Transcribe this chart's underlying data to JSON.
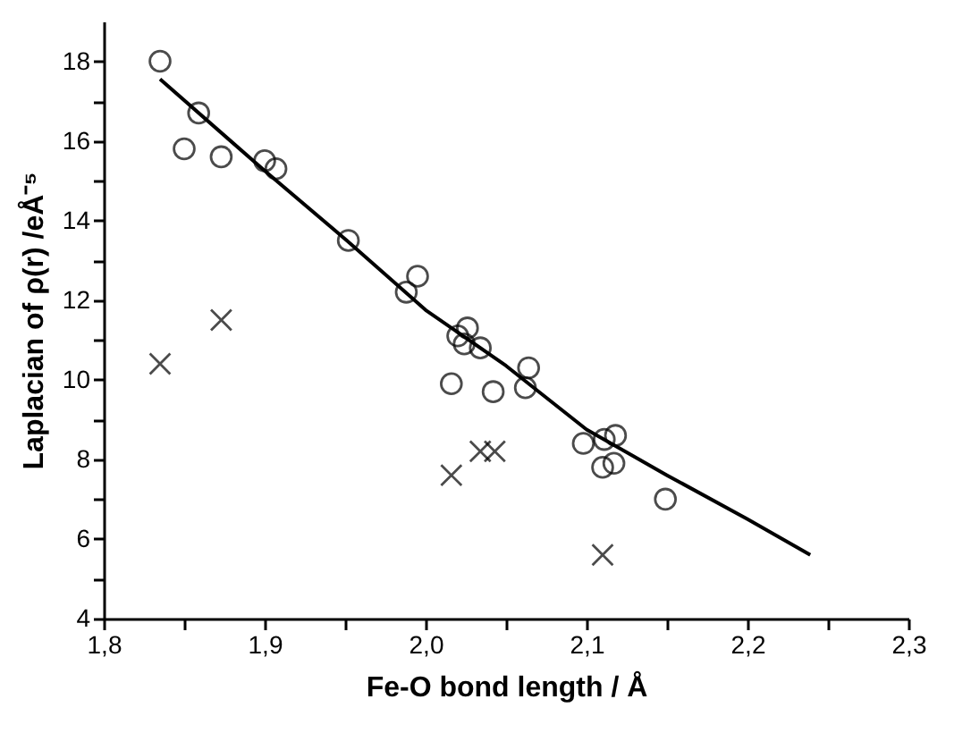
{
  "chart_data": {
    "type": "scatter",
    "xlabel": "Fe-O bond length / Å",
    "ylabel": "Laplacian of ρ(r) /eÅ⁻⁵",
    "xlim": [
      1.8,
      2.3
    ],
    "ylim": [
      4,
      19
    ],
    "xticks": [
      {
        "value": 1.8,
        "label": "1,8"
      },
      {
        "value": 1.85,
        "label": null
      },
      {
        "value": 1.9,
        "label": "1,9"
      },
      {
        "value": 1.95,
        "label": null
      },
      {
        "value": 2.0,
        "label": "2,0"
      },
      {
        "value": 2.05,
        "label": null
      },
      {
        "value": 2.1,
        "label": "2,1"
      },
      {
        "value": 2.15,
        "label": null
      },
      {
        "value": 2.2,
        "label": "2,2"
      },
      {
        "value": 2.25,
        "label": null
      },
      {
        "value": 2.3,
        "label": "2,3"
      }
    ],
    "yticks": [
      4,
      {
        "value": 5,
        "label": null
      },
      6,
      {
        "value": 7,
        "label": null
      },
      8,
      {
        "value": 9,
        "label": null
      },
      10,
      {
        "value": 11,
        "label": null
      },
      12,
      {
        "value": 13,
        "label": null
      },
      14,
      {
        "value": 15,
        "label": null
      },
      16,
      {
        "value": 17,
        "label": null
      },
      18
    ],
    "series": [
      {
        "marker": "circle",
        "color": "#000000",
        "x": [
          1.835,
          1.859,
          1.85,
          1.873,
          1.9,
          1.907,
          1.952,
          1.988,
          1.995,
          2.02,
          2.026,
          2.024,
          2.034,
          2.016,
          2.042,
          2.064,
          2.062,
          2.098,
          2.111,
          2.118,
          2.11,
          2.117,
          2.149
        ],
        "values": [
          18.0,
          16.7,
          15.8,
          15.6,
          15.5,
          15.3,
          13.5,
          12.2,
          12.6,
          11.1,
          11.3,
          10.9,
          10.8,
          9.9,
          9.7,
          10.3,
          9.8,
          8.4,
          8.5,
          8.6,
          7.8,
          7.9,
          7.0
        ]
      },
      {
        "marker": "cross",
        "color": "#000000",
        "x": [
          1.835,
          1.873,
          2.016,
          2.034,
          2.043,
          2.11
        ],
        "values": [
          10.4,
          11.5,
          7.6,
          8.2,
          8.2,
          5.6
        ]
      },
      {
        "type": "line",
        "marker": "none",
        "line_style": "solid",
        "color": "#000000",
        "x": [
          1.835,
          1.9,
          1.951,
          2.0,
          2.05,
          2.1,
          2.15,
          2.2,
          2.239
        ],
        "values": [
          17.55,
          15.25,
          13.5,
          11.75,
          10.35,
          8.75,
          7.6,
          6.5,
          5.6
        ]
      }
    ]
  }
}
